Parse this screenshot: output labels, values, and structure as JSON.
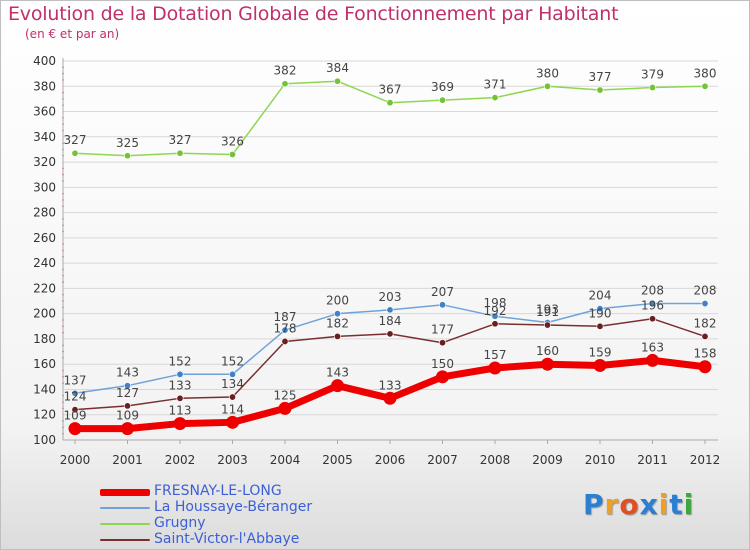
{
  "title": "Evolution de la Dotation Globale de Fonctionnement par Habitant",
  "subtitle": "(en € et par an)",
  "colors": {
    "title": "#c0306a",
    "legend_text": "#3c5fd6",
    "axis": "#aaaaaa",
    "grid": "#d8d8d8",
    "axis_dots": "#e05050"
  },
  "logo": {
    "text": "Proxiti",
    "letter_colors": [
      "#2a7fd4",
      "#f0a020",
      "#e05020",
      "#2a7fd4",
      "#f0a020",
      "#2a7fd4",
      "#3aa83a"
    ]
  },
  "chart_data": {
    "type": "line",
    "x": [
      "2000",
      "2001",
      "2002",
      "2003",
      "2004",
      "2005",
      "2006",
      "2007",
      "2008",
      "2009",
      "2010",
      "2011",
      "2012"
    ],
    "ylim": [
      100,
      400
    ],
    "yticks": [
      100,
      120,
      140,
      160,
      180,
      200,
      220,
      240,
      260,
      280,
      300,
      320,
      340,
      360,
      380,
      400
    ],
    "grid": "horizontal",
    "legend_position": "bottom-left",
    "series": [
      {
        "name": "Grugny",
        "color": "#8fd64f",
        "marker": "#74c23a",
        "values": [
          327,
          325,
          327,
          326,
          382,
          384,
          367,
          369,
          371,
          380,
          377,
          379,
          380
        ],
        "labels": [
          "327",
          "325",
          "327",
          "326",
          "382",
          "384",
          "367",
          "369",
          "371",
          "380",
          "377",
          "379",
          "380"
        ]
      },
      {
        "name": "La Houssaye-Béranger",
        "color": "#6fa3d8",
        "marker": "#3f82c8",
        "values": [
          137,
          143,
          152,
          152,
          187,
          200,
          203,
          207,
          198,
          193,
          204,
          208,
          208
        ],
        "labels": [
          "137",
          "143",
          "152",
          "152",
          "187",
          "200",
          "203",
          "207",
          "198",
          "193",
          "204",
          "208",
          "208"
        ]
      },
      {
        "name": "Saint-Victor-l'Abbaye",
        "color": "#7a2f2f",
        "marker": "#6a1f1f",
        "values": [
          124,
          127,
          133,
          134,
          178,
          182,
          184,
          177,
          192,
          191,
          190,
          196,
          182
        ],
        "labels": [
          "124",
          "127",
          "133",
          "134",
          "178",
          "182",
          "184",
          "177",
          "192",
          "191",
          "190",
          "196",
          "182"
        ]
      },
      {
        "name": "FRESNAY-LE-LONG",
        "color": "#ee0000",
        "marker": "#ee0000",
        "values": [
          109,
          109,
          113,
          114,
          125,
          143,
          133,
          150,
          157,
          160,
          159,
          163,
          158
        ],
        "labels": [
          "109",
          "109",
          "113",
          "114",
          "125",
          "143",
          "133",
          "150",
          "157",
          "160",
          "159",
          "163",
          "158"
        ]
      }
    ],
    "legend": [
      {
        "name": "FRESNAY-LE-LONG",
        "color": "#ee0000"
      },
      {
        "name": "La Houssaye-Béranger",
        "color": "#6fa3d8"
      },
      {
        "name": "Grugny",
        "color": "#8fd64f"
      },
      {
        "name": "Saint-Victor-l'Abbaye",
        "color": "#7a2f2f"
      }
    ]
  }
}
